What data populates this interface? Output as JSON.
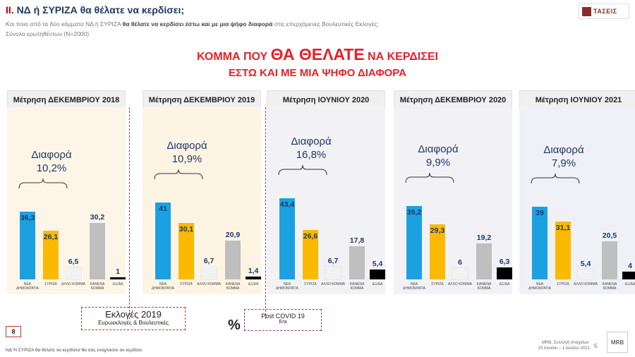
{
  "header": {
    "title_num": "ΙΙ.",
    "title_text": "ΝΔ  ή ΣΥΡΙΖΑ θα θέλατε να κερδίσει;",
    "subtitle_pre": "Και ποιο από τα δύο κόμματα ΝΔ ή ΣΥΡΙΖΑ ",
    "subtitle_bold": "θα θέλατε να κερδίσει έστω και με μια ψήφο διαφορά",
    "subtitle_post": " στις επερχόμενες Βουλευτικές Εκλογές;",
    "sample": "Σύνολο ερωτηθέντων (Ν=2000)",
    "logo_text": "ΤΑΣΕΙΣ"
  },
  "headline": {
    "pre": "ΚΟΜΜΑ ΠΟΥ ",
    "big": "ΘΑ ΘΕΛΑΤΕ",
    "post": " ΝΑ ΚΕΡΔΙΣΕΙ",
    "line2": "ΕΣΤΩ ΚΑΙ ΜΕ ΜΙΑ ΨΗΦΟ ΔΙΑΦΟΡΑ"
  },
  "diff_word": "Διαφορά",
  "chart_data": [
    {
      "type": "bar",
      "title": "Μέτρηση ΔΕΚΕΜΒΡΙΟΥ 2018",
      "difference": "10,2%",
      "categories": [
        "ΝΕΑ ΔΗΜΟΚΡΑΤΙΑ",
        "ΣΥΡΙΖΑ",
        "ΑΛΛΟ ΚΟΜΜΑ",
        "ΚΑΝΕΝΑ ΚΟΜΜΑ",
        "ΔΞ/ΔΑ"
      ],
      "values": [
        36.3,
        26.1,
        6.5,
        30.2,
        1
      ],
      "labels": [
        "36,3",
        "26,1",
        "6,5",
        "30,2",
        "1"
      ],
      "ylim": [
        0,
        50
      ]
    },
    {
      "type": "bar",
      "title": "Μέτρηση ΔΕΚΕΜΒΡΙΟΥ 2019",
      "difference": "10,9%",
      "categories": [
        "ΝΕΑ ΔΗΜΟΚΡΑΤΙΑ",
        "ΣΥΡΙΖΑ",
        "ΑΛΛΟ ΚΟΜΜΑ",
        "ΚΑΝΕΝΑ ΚΟΜΜΑ",
        "ΔΞ/ΔΑ"
      ],
      "values": [
        41,
        30.1,
        6.7,
        20.9,
        1.4
      ],
      "labels": [
        "41",
        "30,1",
        "6,7",
        "20,9",
        "1,4"
      ],
      "ylim": [
        0,
        50
      ]
    },
    {
      "type": "bar",
      "title": "Μέτρηση ΙΟΥΝΙΟΥ 2020",
      "difference": "16,8%",
      "categories": [
        "ΝΕΑ ΔΗΜΟΚΡΑΤΙΑ",
        "ΣΥΡΙΖΑ",
        "ΑΛΛΟ ΚΟΜΜΑ",
        "ΚΑΝΕΝΑ ΚΟΜΜΑ",
        "ΔΞ/ΔΑ"
      ],
      "values": [
        43.4,
        26.6,
        6.7,
        17.8,
        5.4
      ],
      "labels": [
        "43,4",
        "26,6",
        "6,7",
        "17,8",
        "5,4"
      ],
      "ylim": [
        0,
        50
      ]
    },
    {
      "type": "bar",
      "title": "Μέτρηση ΔΕΚΕΜΒΡΙΟΥ 2020",
      "difference": "9,9%",
      "categories": [
        "ΝΕΑ ΔΗΜΟΚΡΑΤΙΑ",
        "ΣΥΡΙΖΑ",
        "ΑΛΛΟ ΚΟΜΜΑ",
        "ΚΑΝΕΝΑ ΚΟΜΜΑ",
        "ΔΞ/ΔΑ"
      ],
      "values": [
        39.2,
        29.3,
        6,
        19.2,
        6.3
      ],
      "labels": [
        "39,2",
        "29,3",
        "6",
        "19,2",
        "6,3"
      ],
      "ylim": [
        0,
        50
      ]
    },
    {
      "type": "bar",
      "title": "Μέτρηση ΙΟΥΝΙΟΥ 2021",
      "difference": "7,9%",
      "categories": [
        "ΝΕΑ ΔΗΜΟΚΡΑΤΙΑ",
        "ΣΥΡΙΖΑ",
        "ΑΛΛΟ ΚΟΜΜΑ",
        "ΚΑΝΕΝΑ ΚΟΜΜΑ",
        "ΔΞ/ΔΑ"
      ],
      "values": [
        39,
        31.1,
        5.4,
        20.5,
        4
      ],
      "labels": [
        "39",
        "31,1",
        "5,4",
        "20,5",
        "4"
      ],
      "ylim": [
        0,
        50
      ]
    }
  ],
  "colors": {
    "nd": "#1ba1e2",
    "syriza": "#fbb900",
    "other": "#f2f2f2",
    "none": "#bfbfbf",
    "dk": "#000000",
    "panel_bg": [
      "#fdf6e8",
      "#fdf4e4",
      "#f2f2f4",
      "#f1f1f6",
      "#f0f0f7"
    ]
  },
  "notes": {
    "elections_title": "Εκλογές 2019",
    "elections_sub": "Ευρωεκλογές & Βουλευτικές",
    "percent_sign": "%",
    "covid_title": "Post  COVID 19",
    "covid_sub": "Era"
  },
  "footer": {
    "page_box": "8",
    "question": "ΝΔ Ή ΣΥΡΙΖΑ θα θέλατε να κερδίσει/ θα σας ενοχλούσε αν κερδίσει",
    "source_line1": "MRB, Συλλογή στοιχείων:",
    "source_line2": "23 Ιουνίου – 1 Ιουλίου 2021",
    "page_num": "5",
    "logo": "MRB"
  }
}
